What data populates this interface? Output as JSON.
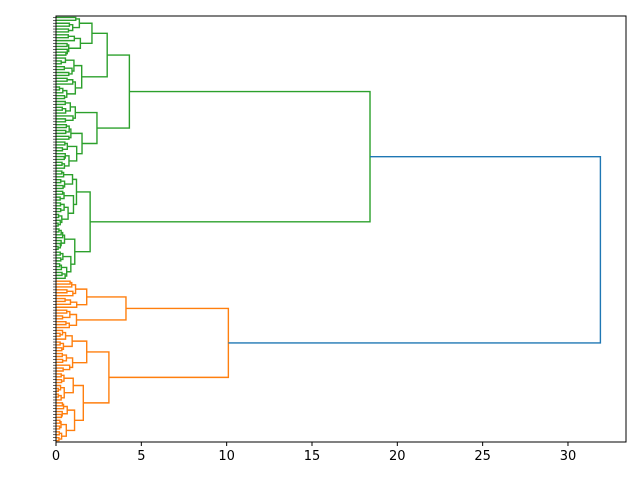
{
  "chart_data": {
    "type": "dendrogram",
    "orientation": "horizontal",
    "title": "",
    "xlabel": "",
    "ylabel": "",
    "xlim": [
      0,
      33.4
    ],
    "x_ticks": [
      0,
      5,
      10,
      15,
      20,
      25,
      30
    ],
    "grid": false,
    "legend": "none",
    "leaf_count": 147,
    "colors": {
      "cluster_1": "#2ca02c",
      "cluster_2": "#ff7f0e",
      "root": "#1f77b4",
      "axis": "#000000"
    },
    "clusters": [
      {
        "name": "",
        "color": "#2ca02c",
        "leaf_range": [
          0,
          90
        ],
        "merge_height": 18.4,
        "children": [
          {
            "leaf_range": [
              0,
              52
            ],
            "merge_height": 4.3,
            "children": [
              {
                "leaf_range": [
                  0,
                  28
                ],
                "merge_height": 3.0
              },
              {
                "leaf_range": [
                  29,
                  52
                ],
                "merge_height": 2.4
              }
            ]
          },
          {
            "leaf_range": [
              53,
              90
            ],
            "merge_height": 2.0,
            "children": [
              {
                "leaf_range": [
                  53,
                  72
                ],
                "merge_height": 1.2
              },
              {
                "leaf_range": [
                  73,
                  90
                ],
                "merge_height": 1.1
              }
            ]
          }
        ]
      },
      {
        "name": "",
        "color": "#ff7f0e",
        "leaf_range": [
          91,
          146
        ],
        "merge_height": 10.1,
        "children": [
          {
            "leaf_range": [
              91,
              107
            ],
            "merge_height": 4.1,
            "children": [
              {
                "leaf_range": [
                  91,
                  100
                ],
                "merge_height": 1.8
              },
              {
                "leaf_range": [
                  101,
                  107
                ],
                "merge_height": 1.2
              }
            ]
          },
          {
            "leaf_range": [
              108,
              146
            ],
            "merge_height": 3.1,
            "children": [
              {
                "leaf_range": [
                  108,
                  122
                ],
                "merge_height": 1.8
              },
              {
                "leaf_range": [
                  123,
                  146
                ],
                "merge_height": 1.6
              }
            ]
          }
        ]
      }
    ],
    "root_merge_height": 31.9
  }
}
